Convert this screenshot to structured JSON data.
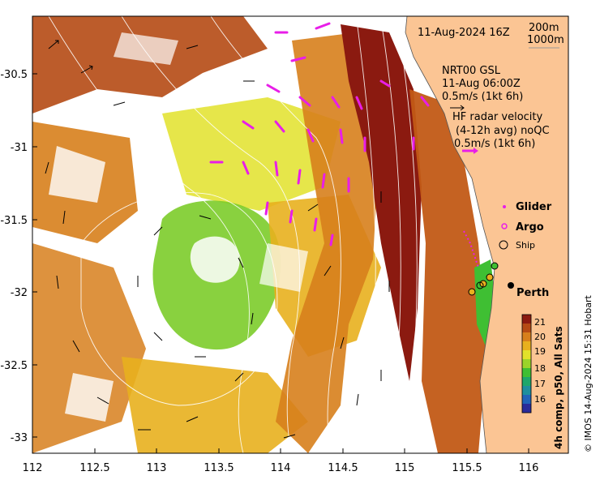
{
  "map": {
    "date_label": "11-Aug-2024 16Z",
    "isobath_labels": [
      "200m",
      "1000m"
    ],
    "gsl": {
      "line1": "NRT00 GSL",
      "line2": "11-Aug 06:00Z",
      "line3": "0.5m/s (1kt 6h)"
    },
    "hf": {
      "line1": "HF radar velocity",
      "line2": "(4-12h avg) noQC",
      "line3": "0.5m/s (1kt 6h)"
    },
    "legend": {
      "glider": "Glider",
      "argo": "Argo",
      "ship": "Ship"
    },
    "city": "Perth",
    "x_ticks": [
      "112",
      "112.5",
      "113",
      "113.5",
      "114",
      "114.5",
      "115",
      "115.5",
      "116"
    ],
    "y_ticks": [
      "-30.5",
      "-31",
      "-31.5",
      "-32",
      "-32.5",
      "-33"
    ],
    "colorbar": {
      "title": "4h comp, p50, All Sats",
      "ticks": [
        "21",
        "20",
        "19",
        "18",
        "17",
        "16"
      ],
      "colors": [
        "#8b1a10",
        "#b54a14",
        "#d77f1c",
        "#e8b01e",
        "#e2e22a",
        "#9bd42a",
        "#3fbf33",
        "#1ea76b",
        "#1e8f9e",
        "#2263b8",
        "#2b2b9a"
      ]
    },
    "credit": "© IMOS 14-Aug-2024 15:31 Hobart",
    "colors": {
      "land": "#fbc594",
      "hf_vector": "#e81ee8",
      "contour": "#ffffff"
    }
  }
}
